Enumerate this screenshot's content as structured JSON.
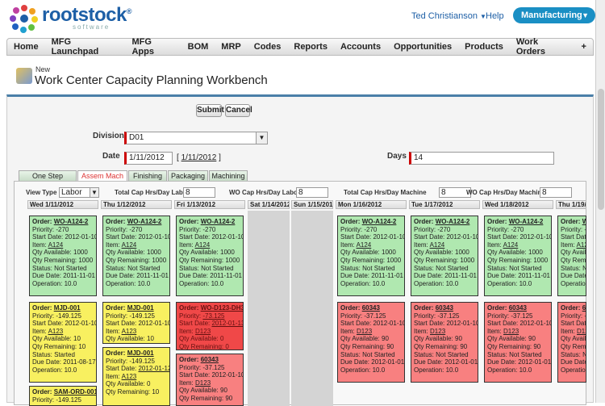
{
  "brand": {
    "name": "rootstock",
    "registered": "®",
    "tagline": "software"
  },
  "topbar": {
    "user": "Ted Christianson",
    "help": "Help",
    "app": "Manufacturing"
  },
  "nav": [
    "Home",
    "MFG Launchpad",
    "MFG Apps",
    "BOM",
    "MRP",
    "Codes",
    "Reports",
    "Accounts",
    "Opportunities",
    "Products",
    "Work Orders",
    "+"
  ],
  "header": {
    "new": "New",
    "title": "Work Center Capacity Planning Workbench"
  },
  "buttons": {
    "submit": "Submit",
    "cancel": "Cancel"
  },
  "form": {
    "division_label": "Division",
    "division_value": "D01",
    "date_label": "Date",
    "date_value": "1/11/2012",
    "date_link": "1/11/2012",
    "days_label": "Days",
    "days_value": "14"
  },
  "tabs": [
    "One Step Routing",
    "Assem Mach",
    "Finishing",
    "Packaging",
    "Machining"
  ],
  "active_tab": "Assem Mach",
  "controls": {
    "view_type_label": "View Type",
    "view_type": "Labor",
    "tc_labor_label": "Total Cap Hrs/Day Labor",
    "tc_labor": "8",
    "wo_labor_label": "WO Cap Hrs/Day Labor",
    "wo_labor": "8",
    "tc_mach_label": "Total Cap Hrs/Day Machine",
    "tc_mach": "8",
    "wo_mach_label": "WO Cap Hrs/Day Machine",
    "wo_mach": "8"
  },
  "days": [
    "Wed 1/11/2012",
    "Thu 1/12/2012",
    "Fri 1/13/2012",
    "Sat 1/14/2012",
    "Sun 1/15/2012",
    "Mon 1/16/2012",
    "Tue 1/17/2012",
    "Wed 1/18/2012",
    "Thu 1/19/2012"
  ],
  "cards": {
    "g": {
      "order": "WO-A124-2",
      "lines": [
        "Priority: -270",
        "Start Date: 2012-01-10",
        "Item: A124",
        "Qty Available: 1000",
        "Qty Remaining: 1000",
        "Status: Not Started",
        "Due Date: 2011-11-01",
        "Operation: 10.0"
      ]
    },
    "y1": {
      "order": "MJD-001",
      "lines": [
        "Priority: -149.125",
        "Start Date: 2012-01-10",
        "Item: A123",
        "Qty Available: 10",
        "Qty Remaining: 10",
        "Status: Started",
        "Due Date: 2011-08-17",
        "Operation: 10.0"
      ]
    },
    "y2": {
      "order": "MJD-001",
      "lines": [
        "Priority: -149.125",
        "Start Date: 2012-01-10",
        "Item: A123",
        "Qty Available: 10"
      ]
    },
    "y3": {
      "order": "MJD-001",
      "lines": [
        "Priority: -149.125",
        "Start Date: 2012-01-12",
        "Item: A123",
        "Qty Available: 0",
        "Qty Remaining: 10"
      ]
    },
    "y4": {
      "order": "SAM-ORD-001",
      "lines": [
        "Priority: -149.125"
      ]
    },
    "rh": {
      "order": "WO-D123-DH3",
      "lines": [
        "Priority: -73.125",
        "Start Date: 2012-01-13",
        "Item: D123",
        "Qty Available: 0",
        "Qty Remaining: 0"
      ]
    },
    "r1": {
      "order": "60343",
      "lines": [
        "Priority: -37.125",
        "Start Date: 2012-01-10",
        "Item: D123",
        "Qty Available: 90",
        "Qty Remaining: 90",
        "Status: Not Started",
        "Due Date: 2012-01-01",
        "Operation: 10.0"
      ]
    },
    "r2": {
      "order": "60343",
      "lines": [
        "Priority: -37.125",
        "Start Date: 2012-01-10",
        "Item: D123",
        "Qty Available: 90",
        "Qty Remaining: 90"
      ]
    }
  },
  "labels": {
    "order": "Order:"
  }
}
